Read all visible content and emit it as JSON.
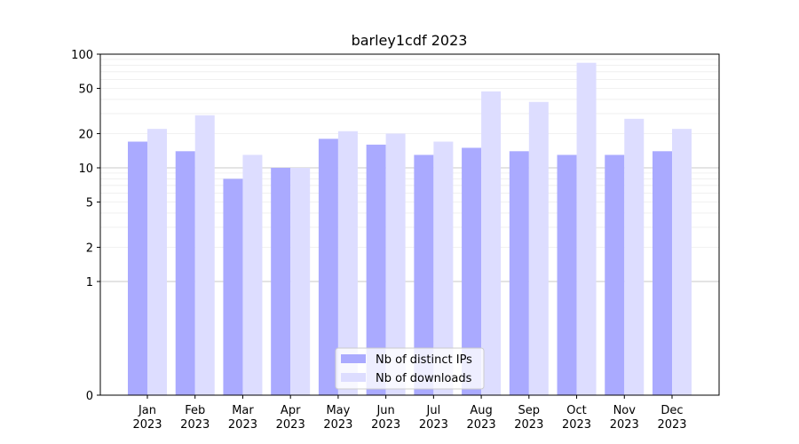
{
  "chart_data": {
    "type": "bar",
    "title": "barley1cdf 2023",
    "xlabel": "",
    "ylabel": "",
    "y_scale": "symlog",
    "ylim": [
      0,
      100
    ],
    "y_ticks": [
      0,
      1,
      2,
      5,
      10,
      20,
      50,
      100
    ],
    "grid": "horizontal",
    "legend_position": "bottom-center",
    "categories": [
      [
        "Jan",
        "2023"
      ],
      [
        "Feb",
        "2023"
      ],
      [
        "Mar",
        "2023"
      ],
      [
        "Apr",
        "2023"
      ],
      [
        "May",
        "2023"
      ],
      [
        "Jun",
        "2023"
      ],
      [
        "Jul",
        "2023"
      ],
      [
        "Aug",
        "2023"
      ],
      [
        "Sep",
        "2023"
      ],
      [
        "Oct",
        "2023"
      ],
      [
        "Nov",
        "2023"
      ],
      [
        "Dec",
        "2023"
      ]
    ],
    "series": [
      {
        "name": "Nb of distinct IPs",
        "color": "#aaaaff",
        "values": [
          17,
          14,
          8,
          10,
          18,
          16,
          13,
          15,
          14,
          13,
          13,
          14
        ]
      },
      {
        "name": "Nb of downloads",
        "color": "#ddddff",
        "values": [
          22,
          29,
          13,
          10,
          21,
          20,
          17,
          47,
          38,
          84,
          27,
          22
        ]
      }
    ]
  }
}
